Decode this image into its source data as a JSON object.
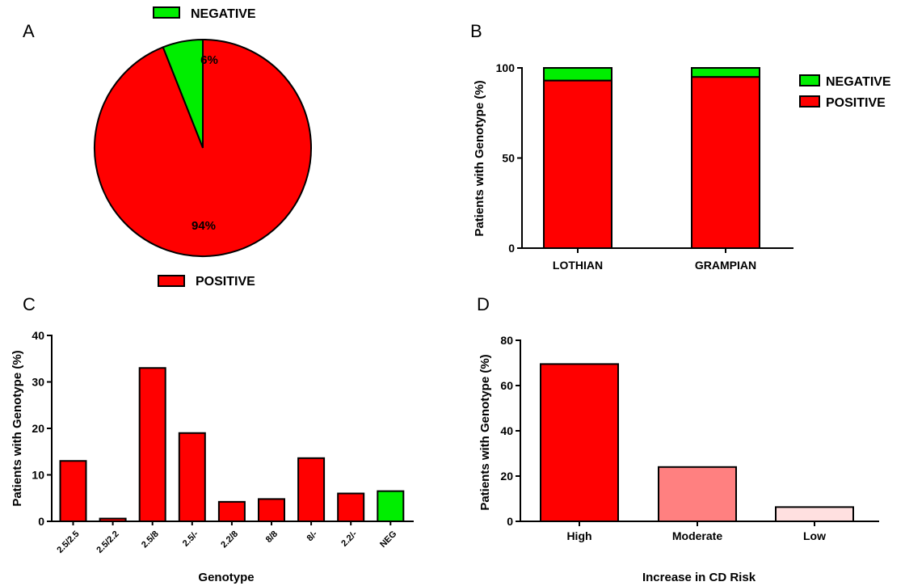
{
  "colors": {
    "positive": "#ff0000",
    "negative": "#00ee00",
    "moderate": "#ff8080",
    "low": "#ffe0e0",
    "stroke": "#000000"
  },
  "chart_data": [
    {
      "panel": "A",
      "type": "pie",
      "labels": [
        "NEGATIVE",
        "POSITIVE"
      ],
      "values": [
        6,
        94
      ],
      "value_labels": [
        "6%",
        "94%"
      ],
      "colors": [
        "#00ee00",
        "#ff0000"
      ],
      "legend_placement": "top and bottom"
    },
    {
      "panel": "B",
      "type": "bar",
      "stacked": true,
      "categories": [
        "LOTHIAN",
        "GRAMPIAN"
      ],
      "series": [
        {
          "name": "POSITIVE",
          "values": [
            93,
            95
          ],
          "color": "#ff0000"
        },
        {
          "name": "NEGATIVE",
          "values": [
            7,
            5
          ],
          "color": "#00ee00"
        }
      ],
      "legend_order": [
        "NEGATIVE",
        "POSITIVE"
      ],
      "ylabel": "Patients with Genotype (%)",
      "xlabel": "",
      "ylim": [
        0,
        100
      ],
      "yticks": [
        0,
        50,
        100
      ],
      "legend_placement": "right"
    },
    {
      "panel": "C",
      "type": "bar",
      "categories": [
        "2.5/2.5",
        "2.5/2.2",
        "2.5/8",
        "2.5/-",
        "2.2/8",
        "8/8",
        "8/-",
        "2.2/-",
        "NEG"
      ],
      "values": [
        13,
        0.6,
        33,
        19,
        4.2,
        4.8,
        13.6,
        6,
        6.5
      ],
      "bar_colors": [
        "#ff0000",
        "#ff0000",
        "#ff0000",
        "#ff0000",
        "#ff0000",
        "#ff0000",
        "#ff0000",
        "#ff0000",
        "#00ee00"
      ],
      "ylabel": "Patients with Genotype (%)",
      "xlabel": "Genotype",
      "ylim": [
        0,
        40
      ],
      "yticks": [
        0,
        10,
        20,
        30,
        40
      ]
    },
    {
      "panel": "D",
      "type": "bar",
      "categories": [
        "High",
        "Moderate",
        "Low"
      ],
      "values": [
        69.5,
        24,
        6.3
      ],
      "bar_colors": [
        "#ff0000",
        "#ff8080",
        "#ffe0e0"
      ],
      "ylabel": "Patients with Genotype (%)",
      "xlabel": "Increase in CD Risk",
      "ylim": [
        0,
        80
      ],
      "yticks": [
        0,
        20,
        40,
        60,
        80
      ]
    }
  ]
}
